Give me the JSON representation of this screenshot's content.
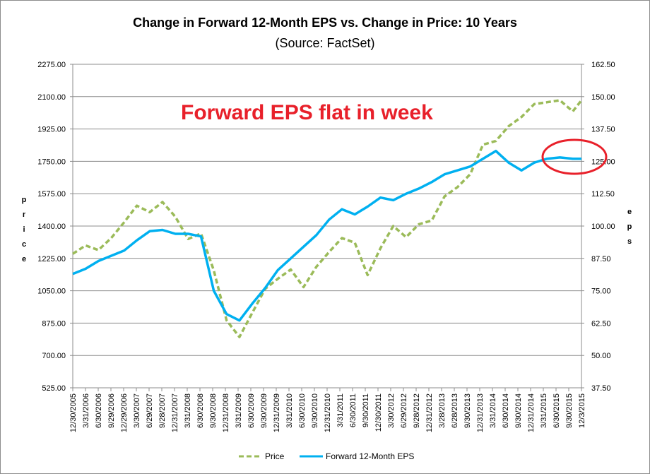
{
  "chart_data": {
    "type": "line",
    "title": "Change in Forward 12-Month EPS vs. Change in Price: 10 Years",
    "subtitle": "(Source: FactSet)",
    "ylabel": "Price",
    "y2label": "EPS",
    "ylim": [
      525,
      2275
    ],
    "y2lim": [
      37.5,
      162.5
    ],
    "yticks": [
      "2275.00",
      "2100.00",
      "1925.00",
      "1750.00",
      "1575.00",
      "1400.00",
      "1225.00",
      "1050.00",
      "875.00",
      "700.00",
      "525.00"
    ],
    "y2ticks": [
      "162.50",
      "150.00",
      "137.50",
      "125.00",
      "112.50",
      "100.00",
      "87.50",
      "75.00",
      "62.50",
      "50.00",
      "37.50"
    ],
    "grid": true,
    "legend_position": "bottom",
    "annotation": "Forward EPS flat in week",
    "highlight_color": "#e8202a",
    "xtick_labels": [
      "12/30/2005",
      "3/31/2006",
      "6/30/2006",
      "9/29/2006",
      "12/29/2006",
      "3/30/2007",
      "6/29/2007",
      "9/28/2007",
      "12/31/2007",
      "3/31/2008",
      "6/30/2008",
      "9/30/2008",
      "12/31/2008",
      "3/31/2009",
      "6/30/2009",
      "9/30/2009",
      "12/31/2009",
      "3/31/2010",
      "6/30/2010",
      "9/30/2010",
      "12/31/2010",
      "3/31/2011",
      "6/30/2011",
      "9/30/2011",
      "12/30/2011",
      "3/30/2012",
      "6/29/2012",
      "9/28/2012",
      "12/31/2012",
      "3/28/2013",
      "6/28/2013",
      "9/30/2013",
      "12/31/2013",
      "3/31/2014",
      "6/30/2014",
      "9/30/2014",
      "12/31/2014",
      "3/31/2015",
      "6/30/2015",
      "9/30/2015",
      "12/3/2015"
    ],
    "x": [
      2006.0,
      2006.25,
      2006.5,
      2006.75,
      2007.0,
      2007.25,
      2007.5,
      2007.75,
      2008.0,
      2008.25,
      2008.5,
      2008.75,
      2009.0,
      2009.25,
      2009.5,
      2009.75,
      2010.0,
      2010.25,
      2010.5,
      2010.75,
      2011.0,
      2011.25,
      2011.5,
      2011.75,
      2012.0,
      2012.25,
      2012.5,
      2012.75,
      2013.0,
      2013.25,
      2013.5,
      2013.75,
      2014.0,
      2014.25,
      2014.5,
      2014.75,
      2015.0,
      2015.25,
      2015.5,
      2015.75,
      2015.92
    ],
    "series": [
      {
        "name": "Price",
        "axis": "left",
        "color": "#9bbb59",
        "dash": true,
        "values": [
          1250,
          1295,
          1270,
          1335,
          1420,
          1510,
          1475,
          1530,
          1450,
          1330,
          1360,
          1160,
          890,
          800,
          930,
          1060,
          1115,
          1165,
          1070,
          1180,
          1260,
          1335,
          1310,
          1135,
          1280,
          1400,
          1340,
          1410,
          1430,
          1560,
          1610,
          1680,
          1840,
          1860,
          1940,
          1990,
          2060,
          2070,
          2080,
          2020,
          2080
        ]
      },
      {
        "name": "Forward 12-Month EPS",
        "axis": "right",
        "color": "#00b0f0",
        "dash": false,
        "values": [
          81.5,
          83.5,
          86.5,
          88.5,
          90.5,
          94.5,
          98.0,
          98.5,
          97.0,
          97.0,
          96.0,
          75.0,
          66.0,
          63.5,
          70.0,
          76.0,
          83.0,
          87.5,
          92.0,
          96.5,
          102.5,
          106.5,
          104.5,
          107.5,
          111.0,
          110.0,
          112.5,
          114.5,
          117.0,
          120.0,
          121.5,
          123.0,
          126.0,
          129.0,
          124.5,
          121.5,
          124.5,
          126.0,
          126.5,
          126.0,
          126.0
        ]
      }
    ]
  },
  "legend": {
    "price_label": "Price",
    "eps_label": "Forward 12-Month EPS"
  }
}
